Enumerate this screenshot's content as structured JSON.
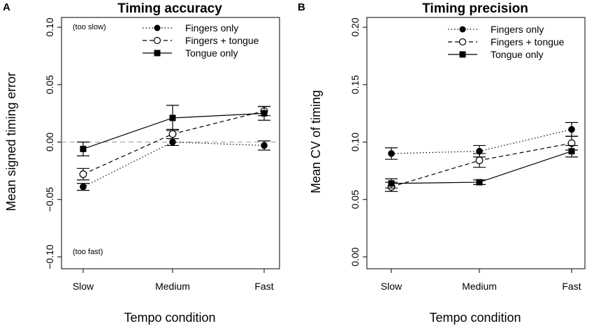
{
  "chart_data": [
    {
      "panel": "A",
      "type": "line",
      "title": "Timing accuracy",
      "xlabel": "Tempo condition",
      "ylabel": "Mean signed timing error",
      "categories": [
        "Slow",
        "Medium",
        "Fast"
      ],
      "ylim": [
        -0.1,
        0.1
      ],
      "yticks": [
        -0.1,
        -0.05,
        0.0,
        0.05,
        0.1
      ],
      "ytick_labels": [
        "−0.10",
        "−0.05",
        "0.00",
        "0.05",
        "0.10"
      ],
      "reference_line": 0.0,
      "annotations": {
        "top": "(too slow)",
        "bottom": "(too fast)"
      },
      "legend_position": "top-right",
      "series": [
        {
          "name": "Fingers only",
          "marker": "filled-circle",
          "line": "dotted",
          "values": [
            -0.039,
            0.0,
            -0.003
          ],
          "err": [
            0.003,
            0.003,
            0.004
          ]
        },
        {
          "name": "Fingers + tongue",
          "marker": "open-circle",
          "line": "dashed",
          "values": [
            -0.028,
            0.007,
            0.027
          ],
          "err": [
            0.005,
            0.004,
            0.004
          ]
        },
        {
          "name": "Tongue only",
          "marker": "filled-square",
          "line": "solid",
          "values": [
            -0.006,
            0.021,
            0.025
          ],
          "err": [
            0.006,
            0.011,
            0.006
          ]
        }
      ]
    },
    {
      "panel": "B",
      "type": "line",
      "title": "Timing precision",
      "xlabel": "Tempo condition",
      "ylabel": "Mean CV of timing",
      "categories": [
        "Slow",
        "Medium",
        "Fast"
      ],
      "ylim": [
        0.0,
        0.2
      ],
      "yticks": [
        0.0,
        0.05,
        0.1,
        0.15,
        0.2
      ],
      "ytick_labels": [
        "0.00",
        "0.05",
        "0.10",
        "0.15",
        "0.20"
      ],
      "legend_position": "top-right",
      "series": [
        {
          "name": "Fingers only",
          "marker": "filled-circle",
          "line": "dotted",
          "values": [
            0.09,
            0.092,
            0.111
          ],
          "err": [
            0.005,
            0.005,
            0.006
          ]
        },
        {
          "name": "Fingers + tongue",
          "marker": "open-circle",
          "line": "dashed",
          "values": [
            0.061,
            0.084,
            0.099
          ],
          "err": [
            0.004,
            0.006,
            0.006
          ]
        },
        {
          "name": "Tongue only",
          "marker": "filled-square",
          "line": "solid",
          "values": [
            0.064,
            0.065,
            0.092
          ],
          "err": [
            0.004,
            0.002,
            0.005
          ]
        }
      ]
    }
  ]
}
